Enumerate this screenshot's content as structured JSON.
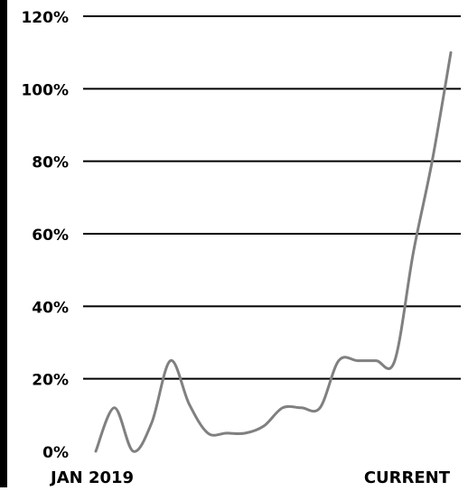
{
  "chart_data": {
    "type": "line",
    "title": "",
    "xlabel": "",
    "ylabel": "",
    "x_tick_labels": [
      "JAN 2019",
      "CURRENT"
    ],
    "y_tick_labels": [
      "0%",
      "20%",
      "40%",
      "60%",
      "80%",
      "100%",
      "120%"
    ],
    "ylim": [
      0,
      120
    ],
    "grid": true,
    "colors": {
      "line": "#808080",
      "grid": "#000000",
      "text": "#000000"
    },
    "series": [
      {
        "values": [
          0,
          12,
          0,
          8,
          25,
          13,
          5,
          5,
          5,
          7,
          12,
          12,
          12,
          25,
          25,
          25,
          25,
          55,
          80,
          110
        ]
      }
    ]
  }
}
